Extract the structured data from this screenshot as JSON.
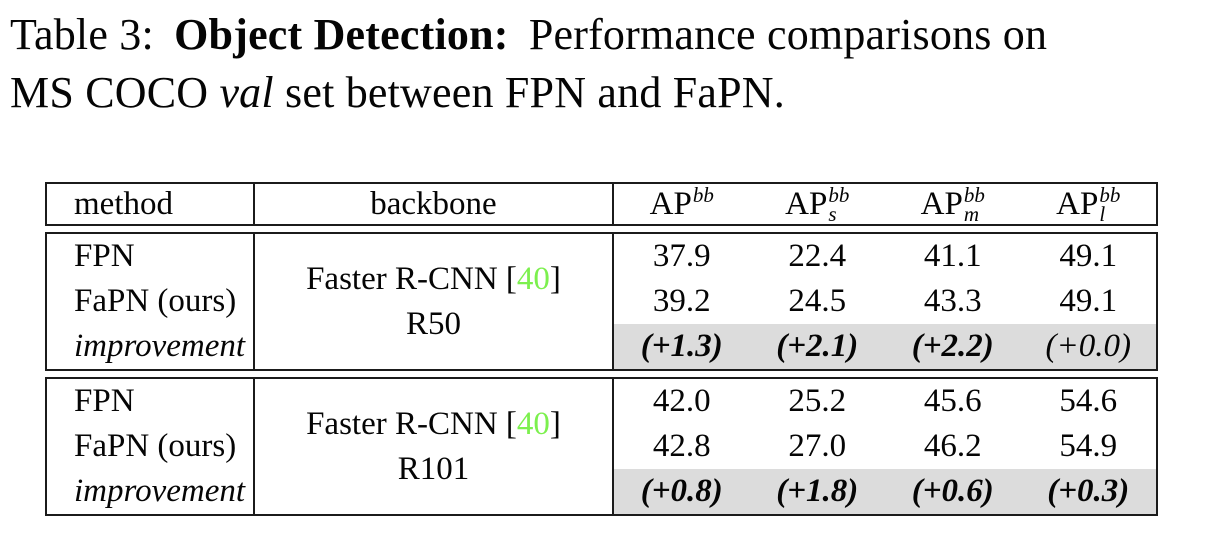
{
  "caption": {
    "prefix": "Table 3:",
    "bold": "Object Detection:",
    "line1_rest": "Performance comparisons on",
    "line2_pre": "MS COCO",
    "val_italic": "val",
    "line2_rest": "set between FPN and FaPN."
  },
  "colors": {
    "citation_green": "#7cf04e",
    "highlight_gray": "#dcdcdc"
  },
  "table": {
    "headers": {
      "method": "method",
      "backbone": "backbone",
      "ap_columns": [
        {
          "base": "AP",
          "sup": "bb",
          "sub": ""
        },
        {
          "base": "AP",
          "sup": "bb",
          "sub": "s"
        },
        {
          "base": "AP",
          "sup": "bb",
          "sub": "m"
        },
        {
          "base": "AP",
          "sup": "bb",
          "sub": "l"
        }
      ]
    },
    "blocks": [
      {
        "backbone": {
          "name": "Faster R-CNN ",
          "cite_open": "[",
          "cite": "40",
          "cite_close": "]",
          "variant": "R50"
        },
        "rows": [
          {
            "method": "FPN",
            "values": [
              "37.9",
              "22.4",
              "41.1",
              "49.1"
            ]
          },
          {
            "method": "FaPN (ours)",
            "values": [
              "39.2",
              "24.5",
              "43.3",
              "49.1"
            ]
          },
          {
            "method": "improvement",
            "values": [
              "(+1.3)",
              "(+2.1)",
              "(+2.2)",
              "(+0.0)"
            ]
          }
        ]
      },
      {
        "backbone": {
          "name": "Faster R-CNN ",
          "cite_open": "[",
          "cite": "40",
          "cite_close": "]",
          "variant": "R101"
        },
        "rows": [
          {
            "method": "FPN",
            "values": [
              "42.0",
              "25.2",
              "45.6",
              "54.6"
            ]
          },
          {
            "method": "FaPN (ours)",
            "values": [
              "42.8",
              "27.0",
              "46.2",
              "54.9"
            ]
          },
          {
            "method": "improvement",
            "values": [
              "(+0.8)",
              "(+1.8)",
              "(+0.6)",
              "(+0.3)"
            ]
          }
        ]
      }
    ]
  }
}
